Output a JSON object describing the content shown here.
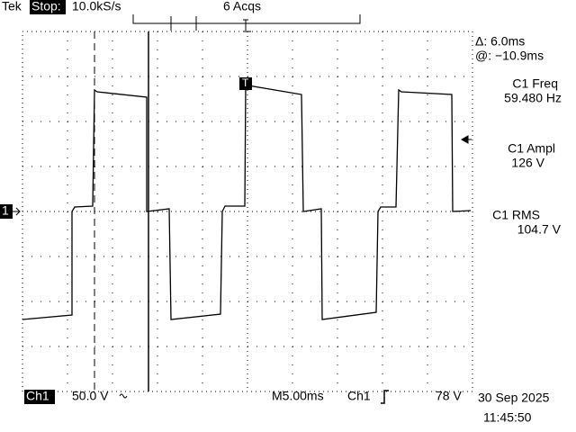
{
  "header": {
    "brand": "Tek",
    "status": "Stop:",
    "sample_rate": "10.0kS/s",
    "acquisitions": "6 Acqs"
  },
  "markers": {
    "channel": "1",
    "trigger": "T"
  },
  "readouts": {
    "cursor_delta": "Δ: 6.0ms",
    "cursor_at": "@: −10.9ms",
    "freq_label": "C1 Freq",
    "freq_value": "59.480 Hz",
    "ampl_label": "C1 Ampl",
    "ampl_value": "126 V",
    "rms_label": "C1 RMS",
    "rms_value": "104.7 V"
  },
  "footer": {
    "channel": "Ch1",
    "scale": "50.0 V",
    "timebase": "M5.00ms",
    "trigger_source": "Ch1",
    "trigger_level": "78 V",
    "date": "30 Sep 2025",
    "time": "11:45:50"
  }
}
